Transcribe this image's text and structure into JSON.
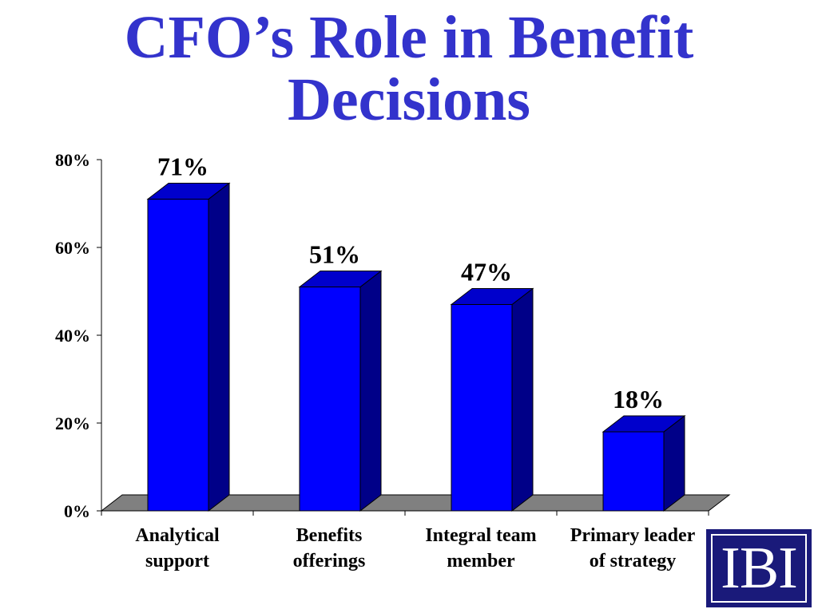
{
  "title": {
    "line1": "CFO’s Role in Benefit",
    "line2": "Decisions"
  },
  "chart_data": {
    "type": "bar",
    "title": "CFO’s Role in Benefit Decisions",
    "categories": [
      [
        "Analytical",
        "support"
      ],
      [
        "Benefits",
        "offerings"
      ],
      [
        "Integral team",
        "member"
      ],
      [
        "Primary leader",
        "of strategy"
      ]
    ],
    "values": [
      71,
      51,
      47,
      18
    ],
    "data_labels": [
      "71%",
      "51%",
      "47%",
      "18%"
    ],
    "y_ticks": [
      "0%",
      "20%",
      "40%",
      "60%",
      "80%"
    ],
    "ylim": [
      0,
      80
    ],
    "xlabel": "",
    "ylabel": "",
    "grid": false,
    "three_d": true,
    "colors": {
      "bar_front": "#0000ff",
      "bar_side": "#000088",
      "bar_top": "#0000cc",
      "floor": "#808080"
    }
  },
  "logo": {
    "text": "IBI",
    "background": "#1a1a7a"
  }
}
